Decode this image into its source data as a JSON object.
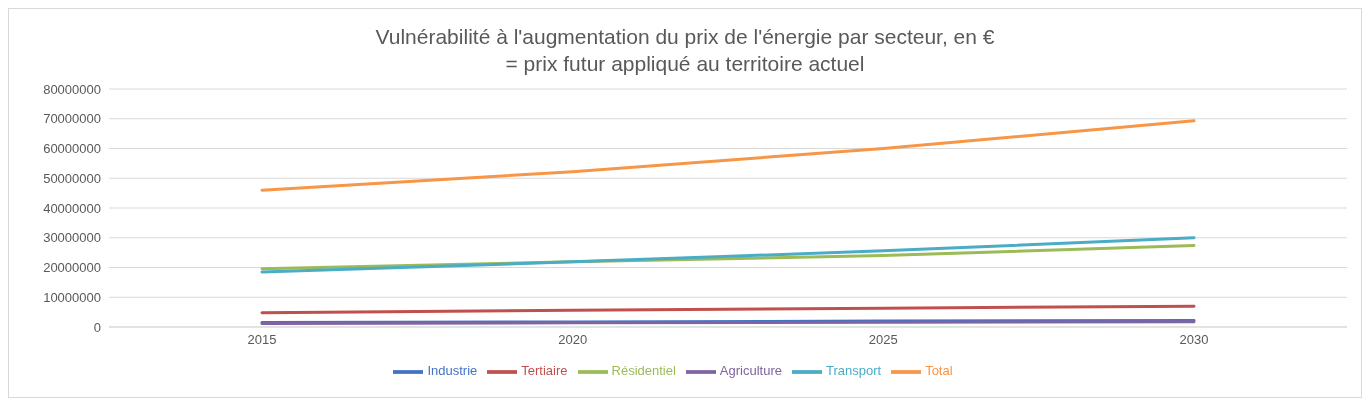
{
  "chart_data": {
    "type": "line",
    "title": "Vulnérabilité à l'augmentation du prix de l'énergie par secteur, en €",
    "subtitle": "= prix futur appliqué au territoire actuel",
    "categories": [
      "2015",
      "2020",
      "2025",
      "2030"
    ],
    "series": [
      {
        "name": "Industrie",
        "color": "#4472c4",
        "values": [
          1500000,
          1700000,
          2000000,
          2200000
        ]
      },
      {
        "name": "Tertiaire",
        "color": "#c0504d",
        "values": [
          4800000,
          5600000,
          6300000,
          7000000
        ]
      },
      {
        "name": "Résidentiel",
        "color": "#9bbb59",
        "values": [
          19600000,
          21900000,
          24000000,
          27400000
        ]
      },
      {
        "name": "Agriculture",
        "color": "#8064a2",
        "values": [
          1200000,
          1400000,
          1600000,
          1800000
        ]
      },
      {
        "name": "Transport",
        "color": "#4bacc6",
        "values": [
          18500000,
          21900000,
          25600000,
          30000000
        ]
      },
      {
        "name": "Total",
        "color": "#f79646",
        "values": [
          46000000,
          52200000,
          60000000,
          69300000
        ]
      }
    ],
    "ylim": [
      0,
      80000000
    ],
    "yticks": [
      0,
      10000000,
      20000000,
      30000000,
      40000000,
      50000000,
      60000000,
      70000000,
      80000000
    ],
    "grid": "y",
    "legend": "bottom",
    "marker": "none",
    "line_style": "solid"
  }
}
